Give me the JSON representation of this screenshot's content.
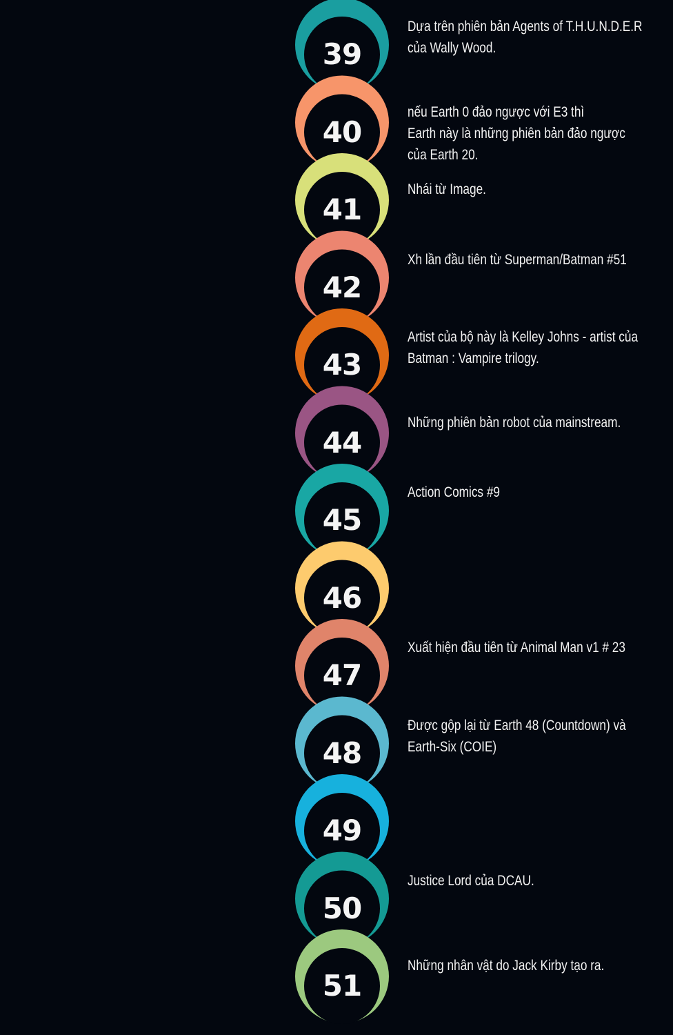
{
  "items": [
    {
      "number": "39",
      "color": "#1a9ea0",
      "lines": [
        "Dựa trên phiên bản Agents of T.H.U.N.D.E.R",
        "của Wally Wood."
      ]
    },
    {
      "number": "40",
      "color": "#f7956a",
      "lines": [
        "nếu Earth 0 đảo ngược với E3 thì",
        "Earth này là những phiên bản đảo ngược",
        "của Earth 20."
      ]
    },
    {
      "number": "41",
      "color": "#d8e07a",
      "lines": [
        "Nhái từ Image."
      ]
    },
    {
      "number": "42",
      "color": "#ec8570",
      "lines": [
        "Xh lần đầu tiên từ Superman/Batman #51"
      ]
    },
    {
      "number": "43",
      "color": "#e06a14",
      "lines": [
        "Artist của bộ này là Kelley Johns - artist của",
        "Batman : Vampire trilogy."
      ]
    },
    {
      "number": "44",
      "color": "#9a5584",
      "lines": [
        "Những phiên bản robot của mainstream."
      ]
    },
    {
      "number": "45",
      "color": "#19a7a4",
      "lines": [
        "Action Comics #9"
      ]
    },
    {
      "number": "46",
      "color": "#fdcb6e",
      "lines": []
    },
    {
      "number": "47",
      "color": "#e0846a",
      "lines": [
        "Xuất hiện đầu tiên từ Animal Man v1 # 23"
      ]
    },
    {
      "number": "48",
      "color": "#5bb8cf",
      "lines": [
        "Được gộp lại từ Earth 48 (Countdown) và",
        "Earth-Six (COIE)"
      ]
    },
    {
      "number": "49",
      "color": "#17b1dd",
      "lines": []
    },
    {
      "number": "50",
      "color": "#149a94",
      "lines": [
        "Justice Lord của DCAU."
      ]
    },
    {
      "number": "51",
      "color": "#9cc97f",
      "lines": [
        "Những nhân vật do Jack Kirby tạo ra."
      ]
    }
  ]
}
